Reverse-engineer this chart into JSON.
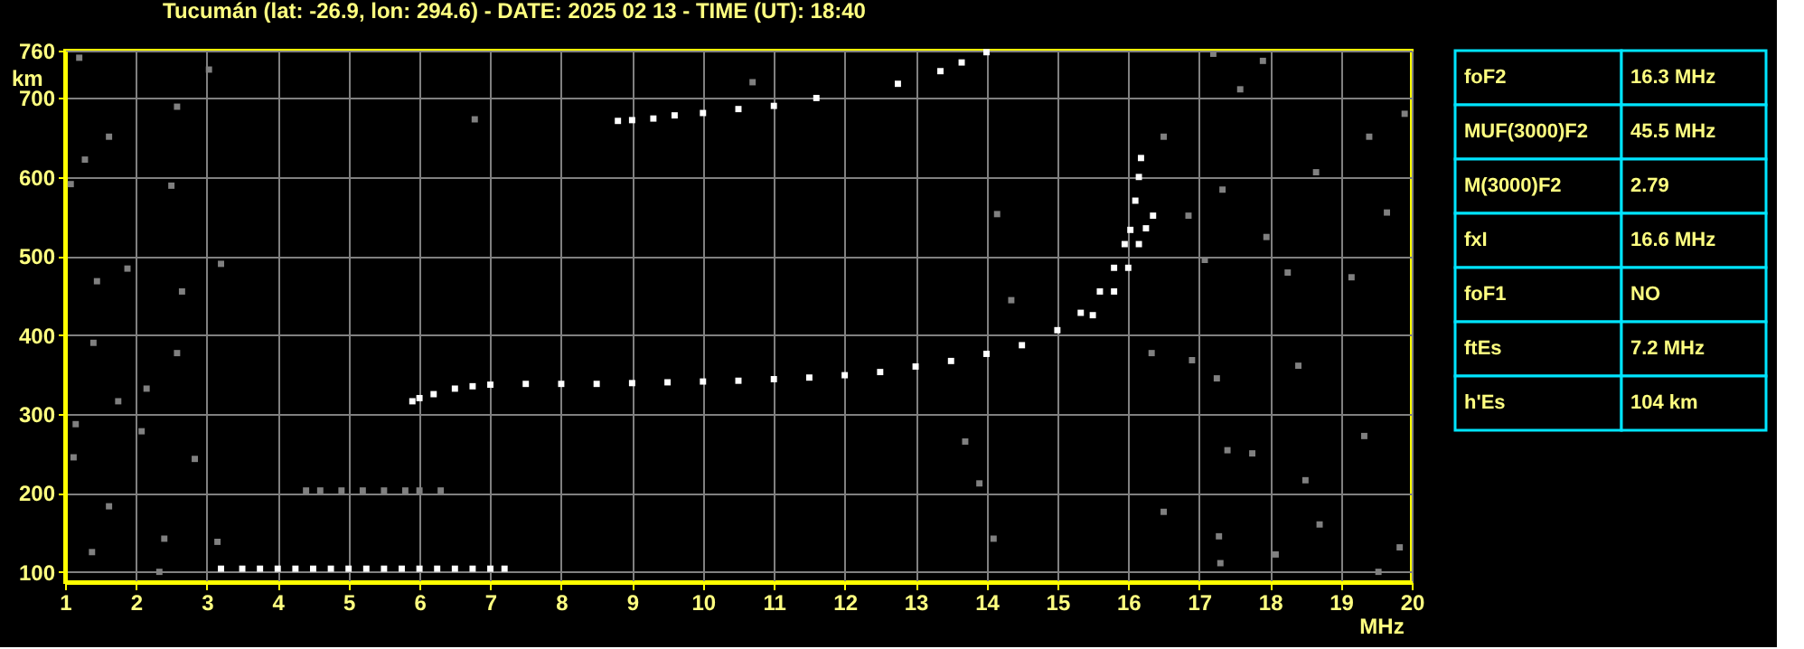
{
  "chart_data": [
    {
      "type": "scatter",
      "title": "Tucumán (lat: -26.9, lon: 294.6) - DATE: 2025 02 13 - TIME (UT): 18:40",
      "xlabel": "MHz",
      "ylabel": "km",
      "xlim": [
        1,
        20
      ],
      "ylim": [
        87,
        760
      ],
      "xticks": [
        1,
        2,
        3,
        4,
        5,
        6,
        7,
        8,
        9,
        10,
        11,
        12,
        13,
        14,
        15,
        16,
        17,
        18,
        19,
        20
      ],
      "yticks": [
        100,
        200,
        300,
        400,
        500,
        600,
        700,
        760
      ],
      "grid": true,
      "marker": "square",
      "series": [
        {
          "color": "#ffffff",
          "x": [
            5.9,
            6.0,
            6.2,
            6.5,
            6.75,
            7.0,
            7.5,
            8.0,
            8.5,
            9.0,
            9.5,
            10.0,
            10.5,
            11.0,
            11.5,
            12.0,
            12.5,
            13.0,
            13.5,
            14.0,
            14.5,
            15.0,
            15.33,
            15.6,
            15.8,
            15.95,
            16.03,
            16.1,
            16.15,
            16.18
          ],
          "values": [
            316,
            320,
            325,
            332,
            335,
            337,
            338,
            338,
            338,
            339,
            340,
            341,
            342,
            344,
            346,
            349,
            353,
            360,
            367,
            376,
            387,
            406,
            428,
            455,
            485,
            515,
            533,
            570,
            600,
            624
          ]
        },
        {
          "color": "#ffffff",
          "x": [
            15.5,
            15.8,
            16.0,
            16.15,
            16.25,
            16.35
          ],
          "values": [
            425,
            455,
            485,
            515,
            535,
            551
          ]
        },
        {
          "color": "#ffffff",
          "x": [
            3.2,
            3.5,
            3.75,
            4.0,
            4.25,
            4.5,
            4.75,
            5.0,
            5.25,
            5.5,
            5.75,
            6.0,
            6.25,
            6.5,
            6.75,
            7.0,
            7.2
          ],
          "values": [
            104,
            104,
            104,
            104,
            104,
            104,
            104,
            104,
            104,
            104,
            104,
            104,
            104,
            104,
            104,
            104,
            104
          ]
        },
        {
          "color": "#ffffff",
          "x": [
            8.8,
            9.0,
            9.3,
            9.6,
            10.0,
            10.5,
            11.0,
            11.6,
            12.75,
            13.35,
            13.65,
            14.0
          ],
          "values": [
            671,
            672,
            674,
            678,
            681,
            686,
            690,
            700,
            718,
            734,
            745,
            758
          ]
        },
        {
          "color": "#808080",
          "x": [
            4.4,
            4.6,
            4.9,
            5.2,
            5.5,
            5.8,
            6.0,
            6.3
          ],
          "values": [
            203,
            203,
            203,
            203,
            203,
            203,
            203,
            203
          ]
        },
        {
          "color": "#808080",
          "x": [
            1.2,
            1.62,
            2.58,
            3.03,
            1.28,
            2.5,
            3.2,
            1.45,
            2.65,
            1.08,
            1.88,
            1.4,
            1.75,
            1.12,
            2.08,
            2.83,
            1.38,
            1.62,
            2.4,
            3.15,
            2.58,
            2.15,
            1.15,
            2.33,
            17.2,
            17.9,
            16.5,
            17.58,
            18.65,
            19.4,
            17.33,
            16.85,
            17.95,
            19.65,
            18.25,
            17.08,
            19.15,
            19.9,
            16.33,
            16.9,
            17.25,
            18.4,
            17.4,
            18.5,
            17.75,
            19.33,
            16.5,
            17.28,
            17.3,
            18.08,
            19.53,
            18.7,
            19.83,
            13.7,
            14.1,
            13.9,
            6.78,
            14.15,
            14.35,
            10.7
          ],
          "values": [
            751,
            651,
            689,
            736,
            622,
            589,
            490,
            468,
            455,
            591,
            484,
            390,
            316,
            245,
            278,
            243,
            125,
            183,
            142,
            138,
            377,
            332,
            287,
            100,
            756,
            747,
            651,
            711,
            606,
            651,
            584,
            551,
            524,
            555,
            479,
            495,
            473,
            680,
            377,
            368,
            345,
            361,
            254,
            216,
            250,
            272,
            176,
            145,
            111,
            122,
            100,
            160,
            131,
            265,
            142,
            212,
            673,
            553,
            444,
            720
          ]
        }
      ]
    },
    {
      "type": "other",
      "annotations": [
        "foF2",
        "16.3 MHz",
        "MUF(3000)F2",
        "45.5 MHz",
        "M(3000)F2",
        "2.79",
        "fxI",
        "16.6 MHz",
        "foF1",
        "NO",
        "ftEs",
        "7.2 MHz",
        "h'Es",
        "104 km"
      ]
    }
  ]
}
